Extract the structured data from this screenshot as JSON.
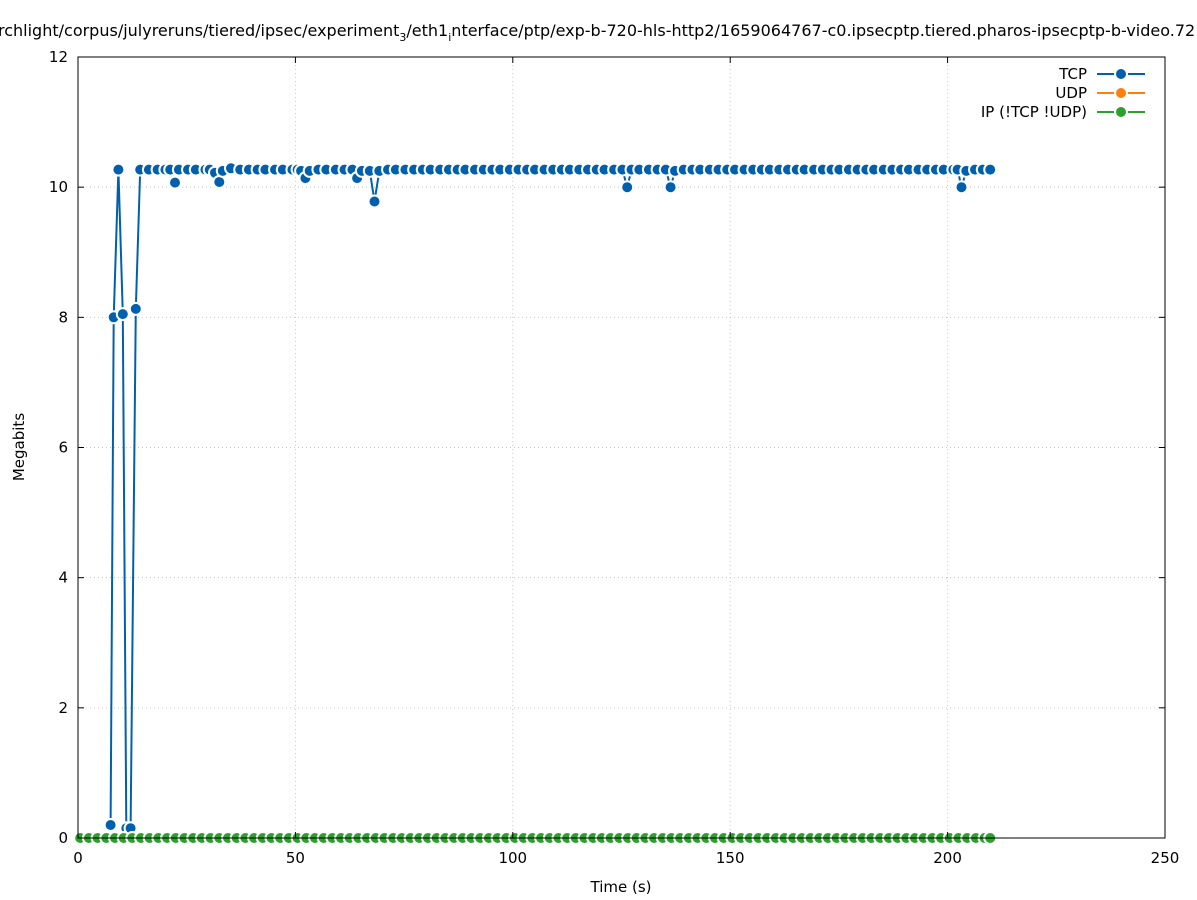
{
  "chart_data": {
    "type": "line",
    "title": "rchlight/corpus/julyreruns/tiered/ipsec/experiment_3/eth1_interface/ptp/exp-b-720-hls-http2/1659064767-c0.ipsecptp.tiered.pharos-ipsecptp-b-video.72",
    "title_parts": {
      "a": "rchlight/corpus/julyreruns/tiered/ipsec/experiment",
      "a_sub": "3",
      "b": "/eth1",
      "b_sub": "i",
      "c": "nterface/ptp/exp-b-720-hls-http2/1659064767-c0.ipsecptp.tiered.pharos-ipsecptp-b-video.72"
    },
    "xlabel": "Time (s)",
    "ylabel": "Megabits",
    "xlim": [
      0,
      250
    ],
    "ylim": [
      0,
      12
    ],
    "xticks": [
      "0",
      "50",
      "100",
      "150",
      "200",
      "250"
    ],
    "yticks": [
      "0",
      "2",
      "4",
      "6",
      "8",
      "10",
      "12"
    ],
    "grid": true,
    "legend_position": "top-right",
    "series": [
      {
        "name": "TCP",
        "color": "#0060ad",
        "points": [
          [
            7.5,
            0.2
          ],
          [
            8.2,
            8.0
          ],
          [
            9.3,
            10.27
          ],
          [
            10.3,
            8.05
          ],
          [
            11.1,
            0.15
          ],
          [
            12.1,
            0.15
          ],
          [
            13.3,
            8.13
          ],
          [
            14.3,
            10.27
          ],
          [
            16.3,
            10.27
          ],
          [
            18.3,
            10.27
          ],
          [
            20.1,
            10.27
          ],
          [
            21.2,
            10.27
          ],
          [
            22.3,
            10.07
          ],
          [
            23.2,
            10.27
          ],
          [
            25.3,
            10.27
          ],
          [
            27.1,
            10.27
          ],
          [
            29.3,
            10.27
          ],
          [
            30.3,
            10.27
          ],
          [
            31.5,
            10.22
          ],
          [
            32.5,
            10.08
          ],
          [
            33.3,
            10.25
          ],
          [
            35.2,
            10.29
          ],
          [
            37.3,
            10.27
          ],
          [
            39.3,
            10.27
          ],
          [
            41.3,
            10.27
          ],
          [
            43.1,
            10.27
          ],
          [
            45.3,
            10.27
          ],
          [
            47.1,
            10.27
          ],
          [
            49.3,
            10.27
          ],
          [
            50.5,
            10.27
          ],
          [
            51.3,
            10.25
          ],
          [
            52.3,
            10.14
          ],
          [
            53.3,
            10.25
          ],
          [
            55.3,
            10.27
          ],
          [
            57.1,
            10.27
          ],
          [
            59.3,
            10.27
          ],
          [
            61.3,
            10.27
          ],
          [
            63.1,
            10.27
          ],
          [
            64.2,
            10.14
          ],
          [
            65.3,
            10.25
          ],
          [
            67.1,
            10.25
          ],
          [
            68.2,
            9.78
          ],
          [
            69.3,
            10.25
          ],
          [
            71.3,
            10.27
          ],
          [
            73.1,
            10.27
          ],
          [
            75.3,
            10.27
          ],
          [
            77.3,
            10.27
          ],
          [
            79.3,
            10.27
          ],
          [
            81.1,
            10.27
          ],
          [
            83.3,
            10.27
          ],
          [
            85.3,
            10.27
          ],
          [
            87.3,
            10.27
          ],
          [
            89.1,
            10.27
          ],
          [
            91.3,
            10.27
          ],
          [
            93.3,
            10.27
          ],
          [
            95.3,
            10.27
          ],
          [
            97.1,
            10.27
          ],
          [
            99.3,
            10.27
          ],
          [
            101.3,
            10.27
          ],
          [
            103.3,
            10.27
          ],
          [
            105.1,
            10.27
          ],
          [
            107.3,
            10.27
          ],
          [
            109.3,
            10.27
          ],
          [
            111.3,
            10.27
          ],
          [
            113.1,
            10.27
          ],
          [
            115.3,
            10.27
          ],
          [
            117.3,
            10.27
          ],
          [
            119.3,
            10.27
          ],
          [
            121.1,
            10.27
          ],
          [
            123.3,
            10.27
          ],
          [
            125.2,
            10.27
          ],
          [
            126.3,
            10.0
          ],
          [
            127.3,
            10.27
          ],
          [
            129.1,
            10.27
          ],
          [
            131.3,
            10.27
          ],
          [
            133.3,
            10.27
          ],
          [
            135.2,
            10.27
          ],
          [
            136.3,
            10.0
          ],
          [
            137.3,
            10.25
          ],
          [
            139.3,
            10.27
          ],
          [
            141.3,
            10.27
          ],
          [
            143.1,
            10.27
          ],
          [
            145.3,
            10.27
          ],
          [
            147.3,
            10.27
          ],
          [
            149.3,
            10.27
          ],
          [
            151.1,
            10.27
          ],
          [
            153.3,
            10.27
          ],
          [
            155.3,
            10.27
          ],
          [
            157.3,
            10.27
          ],
          [
            159.1,
            10.27
          ],
          [
            161.3,
            10.27
          ],
          [
            163.3,
            10.27
          ],
          [
            165.3,
            10.27
          ],
          [
            167.1,
            10.27
          ],
          [
            169.3,
            10.27
          ],
          [
            171.3,
            10.27
          ],
          [
            173.3,
            10.27
          ],
          [
            175.1,
            10.27
          ],
          [
            177.3,
            10.27
          ],
          [
            179.3,
            10.27
          ],
          [
            181.3,
            10.27
          ],
          [
            183.1,
            10.27
          ],
          [
            185.3,
            10.27
          ],
          [
            187.3,
            10.27
          ],
          [
            189.3,
            10.27
          ],
          [
            191.1,
            10.27
          ],
          [
            193.3,
            10.27
          ],
          [
            195.3,
            10.27
          ],
          [
            197.3,
            10.27
          ],
          [
            199.1,
            10.27
          ],
          [
            201.3,
            10.27
          ],
          [
            202.3,
            10.27
          ],
          [
            203.2,
            10.0
          ],
          [
            204.3,
            10.25
          ],
          [
            206.3,
            10.27
          ],
          [
            208.1,
            10.27
          ],
          [
            209.8,
            10.27
          ]
        ]
      },
      {
        "name": "UDP",
        "color": "#ff7f0e",
        "points": []
      },
      {
        "name": "IP (!TCP  !UDP)",
        "color": "#2ca02c",
        "points": [
          [
            0.5,
            0
          ],
          [
            2.5,
            0
          ],
          [
            4.5,
            0
          ],
          [
            6.5,
            0
          ],
          [
            8.5,
            0
          ],
          [
            10.5,
            0
          ],
          [
            12.5,
            0
          ],
          [
            14.5,
            0
          ],
          [
            16.5,
            0
          ],
          [
            18.5,
            0
          ],
          [
            20.5,
            0
          ],
          [
            22.5,
            0
          ],
          [
            24.5,
            0
          ],
          [
            26.5,
            0
          ],
          [
            28.5,
            0
          ],
          [
            30.5,
            0
          ],
          [
            32.5,
            0
          ],
          [
            34.5,
            0
          ],
          [
            36.5,
            0
          ],
          [
            38.5,
            0
          ],
          [
            40.5,
            0
          ],
          [
            42.5,
            0
          ],
          [
            44.5,
            0
          ],
          [
            46.5,
            0
          ],
          [
            48.5,
            0
          ],
          [
            50.5,
            0
          ],
          [
            52.5,
            0
          ],
          [
            54.5,
            0
          ],
          [
            56.5,
            0
          ],
          [
            58.5,
            0
          ],
          [
            60.5,
            0
          ],
          [
            62.5,
            0
          ],
          [
            64.5,
            0
          ],
          [
            66.5,
            0
          ],
          [
            68.5,
            0
          ],
          [
            70.5,
            0
          ],
          [
            72.5,
            0
          ],
          [
            74.5,
            0
          ],
          [
            76.5,
            0
          ],
          [
            78.5,
            0
          ],
          [
            80.5,
            0
          ],
          [
            82.5,
            0
          ],
          [
            84.5,
            0
          ],
          [
            86.5,
            0
          ],
          [
            88.5,
            0
          ],
          [
            90.5,
            0
          ],
          [
            92.5,
            0
          ],
          [
            94.5,
            0
          ],
          [
            96.5,
            0
          ],
          [
            98.5,
            0
          ],
          [
            100.5,
            0
          ],
          [
            102.5,
            0
          ],
          [
            104.5,
            0
          ],
          [
            106.5,
            0
          ],
          [
            108.5,
            0
          ],
          [
            110.5,
            0
          ],
          [
            112.5,
            0
          ],
          [
            114.5,
            0
          ],
          [
            116.5,
            0
          ],
          [
            118.5,
            0
          ],
          [
            120.5,
            0
          ],
          [
            122.5,
            0
          ],
          [
            124.5,
            0
          ],
          [
            126.5,
            0
          ],
          [
            128.5,
            0
          ],
          [
            130.5,
            0
          ],
          [
            132.5,
            0
          ],
          [
            134.5,
            0
          ],
          [
            136.5,
            0
          ],
          [
            138.5,
            0
          ],
          [
            140.5,
            0
          ],
          [
            142.5,
            0
          ],
          [
            144.5,
            0
          ],
          [
            146.5,
            0
          ],
          [
            148.5,
            0
          ],
          [
            150.5,
            0
          ],
          [
            152.5,
            0
          ],
          [
            154.5,
            0
          ],
          [
            156.5,
            0
          ],
          [
            158.5,
            0
          ],
          [
            160.5,
            0
          ],
          [
            162.5,
            0
          ],
          [
            164.5,
            0
          ],
          [
            166.5,
            0
          ],
          [
            168.5,
            0
          ],
          [
            170.5,
            0
          ],
          [
            172.5,
            0
          ],
          [
            174.5,
            0
          ],
          [
            176.5,
            0
          ],
          [
            178.5,
            0
          ],
          [
            180.5,
            0
          ],
          [
            182.5,
            0
          ],
          [
            184.5,
            0
          ],
          [
            186.5,
            0
          ],
          [
            188.5,
            0
          ],
          [
            190.5,
            0
          ],
          [
            192.5,
            0
          ],
          [
            194.5,
            0
          ],
          [
            196.5,
            0
          ],
          [
            198.5,
            0
          ],
          [
            200.5,
            0
          ],
          [
            202.5,
            0
          ],
          [
            204.5,
            0
          ],
          [
            206.5,
            0
          ],
          [
            208.5,
            0
          ],
          [
            209.8,
            0
          ]
        ]
      }
    ]
  }
}
